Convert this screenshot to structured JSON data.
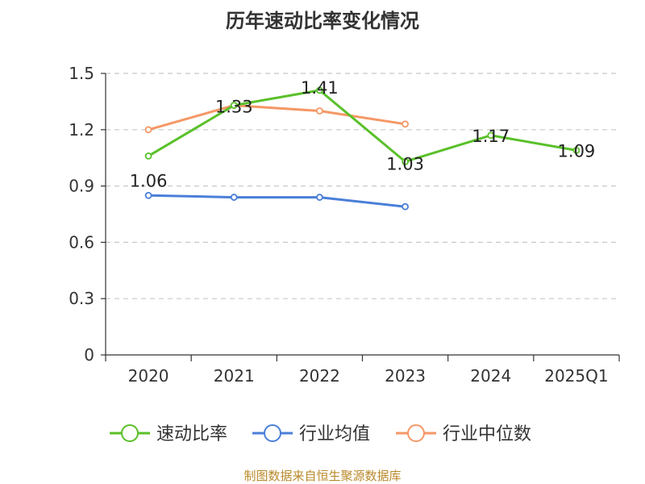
{
  "chart_data": {
    "type": "line",
    "title": "历年速动比率变化情况",
    "categories": [
      "2020",
      "2021",
      "2022",
      "2023",
      "2024",
      "2025Q1"
    ],
    "ylim": [
      0,
      1.5
    ],
    "yticks": [
      "0",
      "0.3",
      "0.6",
      "0.9",
      "1.2",
      "1.5"
    ],
    "ytick_values": [
      0,
      0.3,
      0.6,
      0.9,
      1.2,
      1.5
    ],
    "grid": true,
    "legend_position": "bottom",
    "series": [
      {
        "name": "速动比率",
        "color": "#5ac02a",
        "values": [
          1.06,
          1.33,
          1.41,
          1.03,
          1.17,
          1.09
        ],
        "labels": [
          "1.06",
          "1.33",
          "1.41",
          "1.03",
          "1.17",
          "1.09"
        ]
      },
      {
        "name": "行业均值",
        "color": "#4a7fd8",
        "values": [
          0.85,
          0.84,
          0.84,
          0.79,
          null,
          null
        ]
      },
      {
        "name": "行业中位数",
        "color": "#f59866",
        "values": [
          1.2,
          1.33,
          1.3,
          1.23,
          null,
          null
        ]
      }
    ]
  },
  "source_note": "制图数据来自恒生聚源数据库"
}
